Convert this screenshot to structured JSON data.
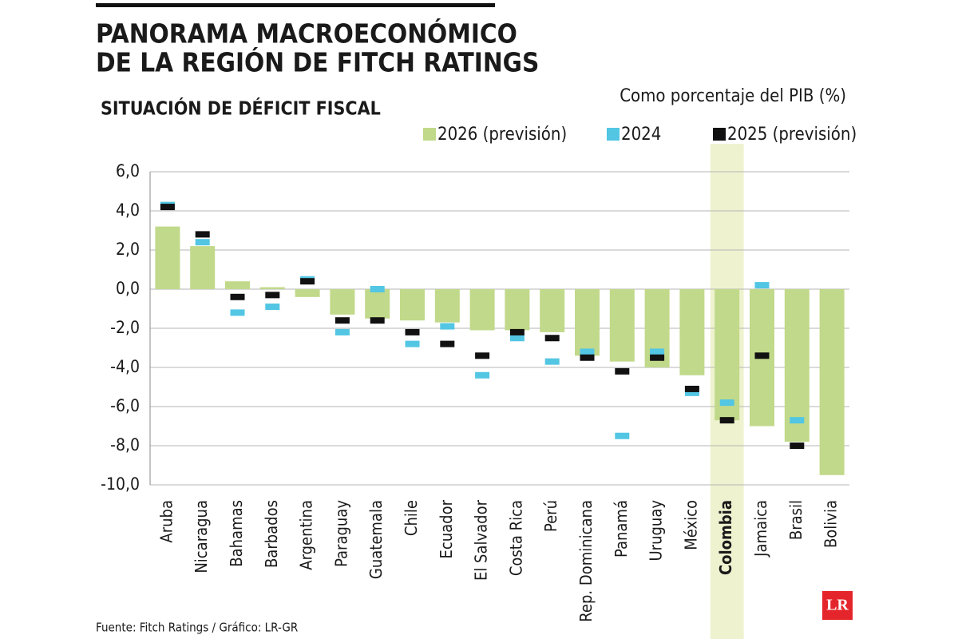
{
  "chart_data": {
    "type": "bar",
    "title": [
      "PANORAMA MACROECONÓMICO",
      "DE LA REGIÓN DE FITCH RATINGS"
    ],
    "subtitle": "SITUACIÓN DE DÉFICIT FISCAL",
    "unit_label": "Como porcentaje del PIB (%)",
    "source": "Fuente: Fitch Ratings / Gráfico: LR-GR",
    "logo": "LR",
    "categories": [
      "Aruba",
      "Nicaragua",
      "Bahamas",
      "Barbados",
      "Argentina",
      "Paraguay",
      "Guatemala",
      "Chile",
      "Ecuador",
      "El Salvador",
      "Costa Rica",
      "Perú",
      "Rep. Dominicana",
      "Panamá",
      "Uruguay",
      "México",
      "Colombia",
      "Jamaica",
      "Brasil",
      "Bolivia"
    ],
    "highlight_index": 16,
    "series": [
      {
        "name": "2026 (previsión)",
        "color": "#c1d98a",
        "mark": "bar",
        "values": [
          3.2,
          2.2,
          0.4,
          0.1,
          -0.4,
          -1.3,
          -1.5,
          -1.6,
          -1.7,
          -2.1,
          -2.1,
          -2.2,
          -3.4,
          -3.7,
          -4.0,
          -4.4,
          -6.7,
          -7.0,
          -7.8,
          -9.5
        ]
      },
      {
        "name": "2024",
        "color": "#52c6e3",
        "mark": "dash",
        "values": [
          4.3,
          2.4,
          -1.2,
          -0.9,
          0.5,
          -2.2,
          0.0,
          -2.8,
          -1.9,
          -4.4,
          -2.5,
          -3.7,
          -3.2,
          -7.5,
          -3.2,
          -5.3,
          -5.8,
          0.2,
          -6.7,
          null
        ]
      },
      {
        "name": "2025 (previsión)",
        "color": "#111111",
        "mark": "dash",
        "values": [
          4.2,
          2.8,
          -0.4,
          -0.3,
          0.4,
          -1.6,
          -1.6,
          -2.2,
          -2.8,
          -3.4,
          -2.2,
          -2.5,
          -3.5,
          -4.2,
          -3.5,
          -5.1,
          -6.7,
          -3.4,
          -8.0,
          null
        ]
      }
    ],
    "ylim": [
      -10,
      6
    ],
    "yticks": [
      {
        "value": -10,
        "label": "-10,0"
      },
      {
        "value": -8,
        "label": "-8,0"
      },
      {
        "value": -6,
        "label": "-6,0"
      },
      {
        "value": -4,
        "label": "-4,0"
      },
      {
        "value": -2,
        "label": "-2,0"
      },
      {
        "value": 0,
        "label": "0,0"
      },
      {
        "value": 2,
        "label": "2,0"
      },
      {
        "value": 4,
        "label": "4,0"
      },
      {
        "value": 6,
        "label": "6,0"
      }
    ],
    "grid": true
  }
}
